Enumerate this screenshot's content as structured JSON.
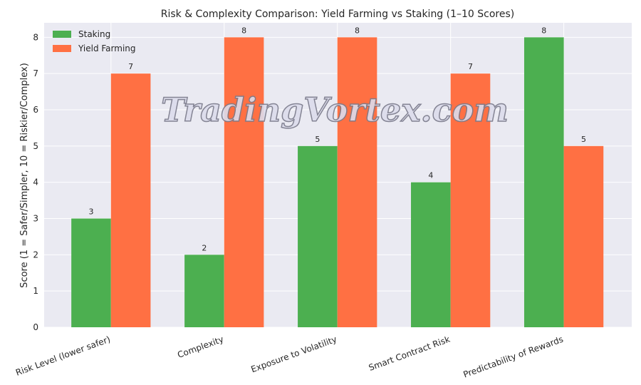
{
  "chart_data": {
    "type": "bar",
    "title": "Risk & Complexity Comparison: Yield Farming vs Staking (1–10 Scores)",
    "xlabel": "",
    "ylabel": "Score (1 = Safer/Simpler, 10 = Riskier/Complex)",
    "categories": [
      "Risk Level (lower safer)",
      "Complexity",
      "Exposure to Volatility",
      "Smart Contract Risk",
      "Predictability of Rewards"
    ],
    "series": [
      {
        "name": "Staking",
        "values": [
          3,
          2,
          5,
          4,
          8
        ],
        "color": "#4caf50"
      },
      {
        "name": "Yield Farming",
        "values": [
          7,
          8,
          8,
          7,
          5
        ],
        "color": "#ff7043"
      }
    ],
    "ylim": [
      0,
      8.4
    ],
    "yticks": [
      0,
      1,
      2,
      3,
      4,
      5,
      6,
      7,
      8
    ],
    "grid": true,
    "legend": "top-left",
    "background": "#eaeaf2"
  },
  "watermark": "TradingVortex.com"
}
